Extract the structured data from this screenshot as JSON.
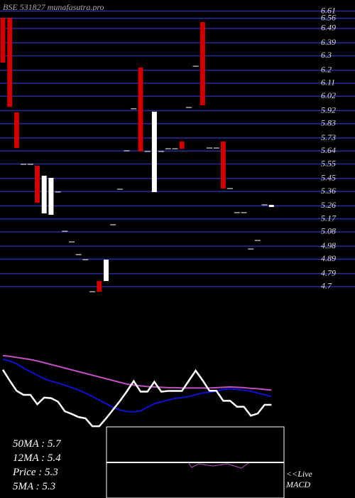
{
  "chart_data": {
    "type": "candlestick",
    "title": "BSE 531827 munafasutra.pro",
    "ylim": [
      4.665,
      6.687
    ],
    "yticks": [
      6.61,
      6.56,
      6.49,
      6.39,
      6.3,
      6.2,
      6.11,
      6.02,
      5.92,
      5.83,
      5.73,
      5.64,
      5.55,
      5.45,
      5.36,
      5.26,
      5.17,
      5.08,
      4.98,
      4.89,
      4.79,
      4.7
    ],
    "grid": true,
    "grid_color": "#2a2a9a",
    "up_color": "#ffffff",
    "down_color": "#cc0000",
    "open": [
      6.564,
      6.564,
      5.908,
      5.548,
      5.548,
      5.538,
      5.208,
      5.198,
      5.356,
      5.084,
      5.01,
      4.922,
      4.887,
      4.665,
      4.739,
      4.739,
      5.129,
      5.375,
      5.642,
      5.933,
      6.219,
      5.637,
      5.355,
      5.637,
      5.656,
      5.656,
      5.706,
      5.942,
      6.228,
      6.534,
      5.661,
      5.661,
      5.706,
      5.38,
      5.213,
      5.213,
      4.961,
      5.02,
      5.267,
      5.252
    ],
    "close": [
      6.253,
      5.947,
      5.661,
      5.548,
      5.548,
      5.282,
      5.469,
      5.454,
      5.356,
      5.084,
      5.01,
      4.922,
      4.887,
      4.665,
      4.665,
      4.887,
      5.129,
      5.375,
      5.642,
      5.933,
      5.637,
      5.637,
      5.913,
      5.637,
      5.656,
      5.656,
      5.656,
      5.942,
      6.228,
      5.957,
      5.661,
      5.661,
      5.38,
      5.38,
      5.213,
      5.213,
      4.961,
      5.02,
      5.267,
      5.267
    ],
    "ma_lines": [
      {
        "color": "#1010d0",
        "values": [
          6.55,
          6.5,
          6.42,
          6.3,
          6.2,
          6.1,
          6.0,
          5.93,
          5.88,
          5.82,
          5.75,
          5.68,
          5.6,
          5.5,
          5.4,
          5.3,
          5.2,
          5.12,
          5.08,
          5.07,
          5.1,
          5.2,
          5.3,
          5.35,
          5.4,
          5.45,
          5.47,
          5.5,
          5.55,
          5.6,
          5.62,
          5.65,
          5.7,
          5.72,
          5.7,
          5.68,
          5.65,
          5.6,
          5.55,
          5.5
        ]
      },
      {
        "color": "#c050c0",
        "values": [
          6.65,
          6.63,
          6.6,
          6.57,
          6.54,
          6.5,
          6.45,
          6.4,
          6.35,
          6.3,
          6.25,
          6.2,
          6.15,
          6.1,
          6.05,
          6.0,
          5.95,
          5.9,
          5.85,
          5.82,
          5.8,
          5.78,
          5.77,
          5.76,
          5.75,
          5.75,
          5.74,
          5.74,
          5.74,
          5.74,
          5.74,
          5.75,
          5.76,
          5.77,
          5.76,
          5.75,
          5.73,
          5.72,
          5.7,
          5.68
        ]
      }
    ],
    "stats": [
      "50MA : 5.7",
      "12MA : 5.4",
      "Price   : 5.3",
      "5MA : 5.3"
    ],
    "macd_label": "<<Live",
    "macd_title": "MACD"
  }
}
